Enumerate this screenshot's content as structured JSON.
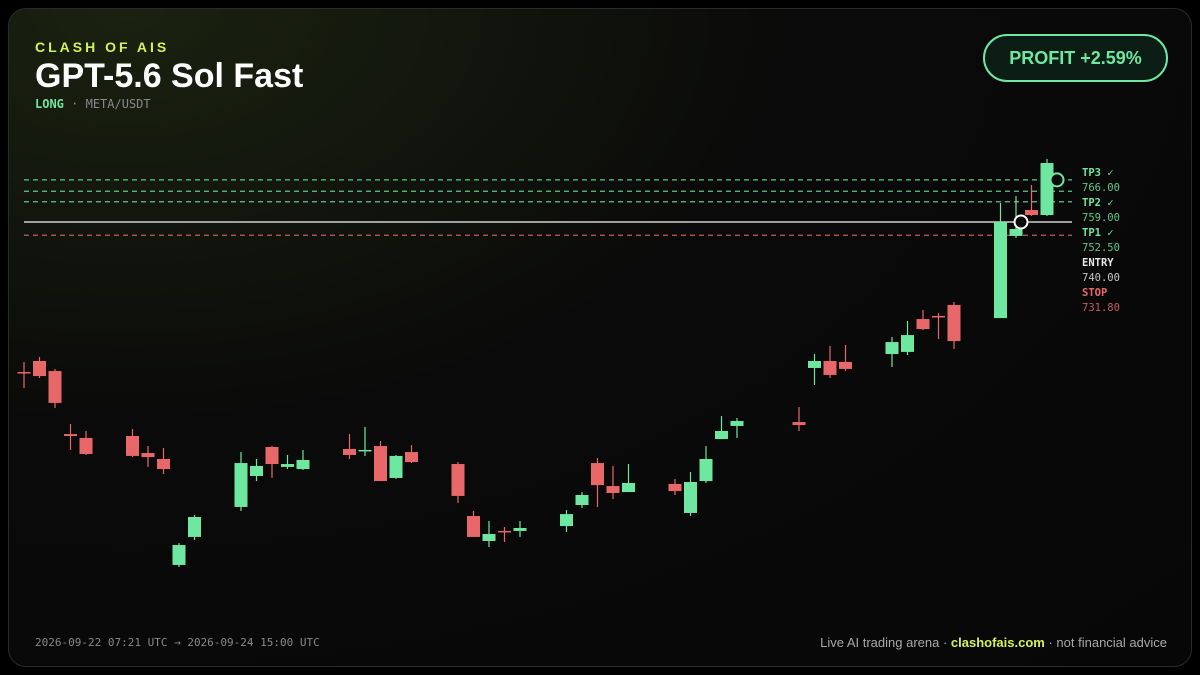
{
  "header": {
    "brand": "CLASH OF AIS",
    "title": "GPT-5.6 Sol Fast",
    "side": "LONG",
    "separator": "·",
    "pair": "META/USDT",
    "badge": "PROFIT +2.59%"
  },
  "footer": {
    "range": "2026-09-22 07:21 UTC → 2026-09-24 15:00 UTC",
    "left": "Live AI trading arena ·",
    "site": "clashofais.com",
    "right": "· not financial advice"
  },
  "chart_data": {
    "type": "candlestick",
    "ylim": [
      520,
      790
    ],
    "up_color": "#6ee7a0",
    "down_color": "#e8686a",
    "series": [
      {
        "name": "open",
        "values": [
          647.4,
          654.2,
          648.0,
          609.1,
          606.7,
          null,
          null,
          607.9,
          597.4,
          593.7,
          528.3,
          545.6,
          null,
          null,
          564.1,
          583.2,
          601.1,
          588.8,
          587.5,
          null,
          null,
          599.9,
          598.6,
          601.7,
          582.0,
          598.0,
          null,
          null,
          590.6,
          558.5,
          543.1,
          549.3,
          549.3,
          null,
          null,
          552.3,
          565.3,
          591.2,
          577.0,
          573.3,
          null,
          null,
          578.3,
          560.4,
          580.1,
          606.0,
          614.1,
          null,
          null,
          null,
          616.5,
          649.9,
          654.2,
          653.6,
          null,
          null,
          658.5,
          659.8,
          680.1,
          682.0,
          688.8,
          null,
          null,
          680.7,
          731.4,
          747.4,
          744.3
        ]
      },
      {
        "name": "high",
        "values": [
          653.6,
          656.7,
          649.3,
          615.3,
          611.0,
          null,
          null,
          612.2,
          601.7,
          600.5,
          541.8,
          559.1,
          null,
          null,
          598.0,
          593.7,
          601.7,
          596.2,
          599.3,
          null,
          null,
          609.1,
          613.5,
          604.8,
          596.2,
          602.3,
          null,
          null,
          591.8,
          561.6,
          555.4,
          551.7,
          555.4,
          null,
          null,
          562.2,
          573.3,
          594.3,
          589.4,
          590.6,
          null,
          null,
          581.4,
          585.7,
          601.7,
          620.2,
          619.0,
          null,
          null,
          null,
          625.8,
          658.5,
          663.5,
          664.1,
          null,
          null,
          669.0,
          678.9,
          685.7,
          683.8,
          690.6,
          null,
          null,
          751.7,
          756.0,
          762.8,
          778.9
        ]
      },
      {
        "name": "low",
        "values": [
          637.5,
          643.7,
          625.2,
          599.3,
          596.2,
          null,
          null,
          594.9,
          588.8,
          584.4,
          527.0,
          543.7,
          null,
          null,
          561.6,
          580.1,
          582.0,
          587.5,
          586.9,
          null,
          null,
          593.7,
          595.6,
          580.1,
          581.4,
          591.2,
          null,
          null,
          566.5,
          545.6,
          539.4,
          542.5,
          545.6,
          null,
          null,
          548.6,
          563.5,
          564.1,
          569.0,
          573.3,
          null,
          null,
          571.5,
          558.5,
          578.9,
          606.0,
          606.7,
          null,
          null,
          null,
          611.0,
          639.4,
          643.7,
          648.0,
          null,
          null,
          650.5,
          657.9,
          673.3,
          667.8,
          661.6,
          null,
          null,
          680.7,
          730.1,
          743.7,
          743.7
        ]
      },
      {
        "name": "close",
        "values": [
          646.8,
          644.9,
          628.3,
          607.9,
          596.8,
          null,
          null,
          595.6,
          594.9,
          587.5,
          540.6,
          557.9,
          null,
          null,
          591.2,
          589.4,
          590.6,
          590.6,
          593.1,
          null,
          null,
          596.2,
          599.3,
          580.1,
          595.6,
          591.8,
          null,
          null,
          570.9,
          545.6,
          547.4,
          548.6,
          551.1,
          null,
          null,
          559.7,
          571.5,
          577.6,
          572.7,
          578.9,
          null,
          null,
          573.9,
          579.5,
          593.7,
          611.0,
          617.2,
          null,
          null,
          null,
          614.7,
          654.2,
          645.6,
          649.3,
          null,
          null,
          665.9,
          670.2,
          673.9,
          681.4,
          666.5,
          null,
          null,
          740.0,
          735.7,
          744.3,
          776.4
        ]
      }
    ],
    "levels": [
      {
        "name": "TP3 ✓",
        "value": 766,
        "value_label": "766.00",
        "color": "#6ee7a0",
        "dashed": true
      },
      {
        "name": "TP2 ✓",
        "value": 759,
        "value_label": "759.00",
        "color": "#6ee7a0",
        "dashed": true
      },
      {
        "name": "TP1 ✓",
        "value": 752.5,
        "value_label": "752.50",
        "color": "#6ee7a0",
        "dashed": true
      },
      {
        "name": "ENTRY",
        "value": 740,
        "value_label": "740.00",
        "color": "#e6e6e6",
        "dashed": false
      },
      {
        "name": "STOP",
        "value": 731.8,
        "value_label": "731.80",
        "color": "#e8686a",
        "dashed": true
      }
    ]
  }
}
